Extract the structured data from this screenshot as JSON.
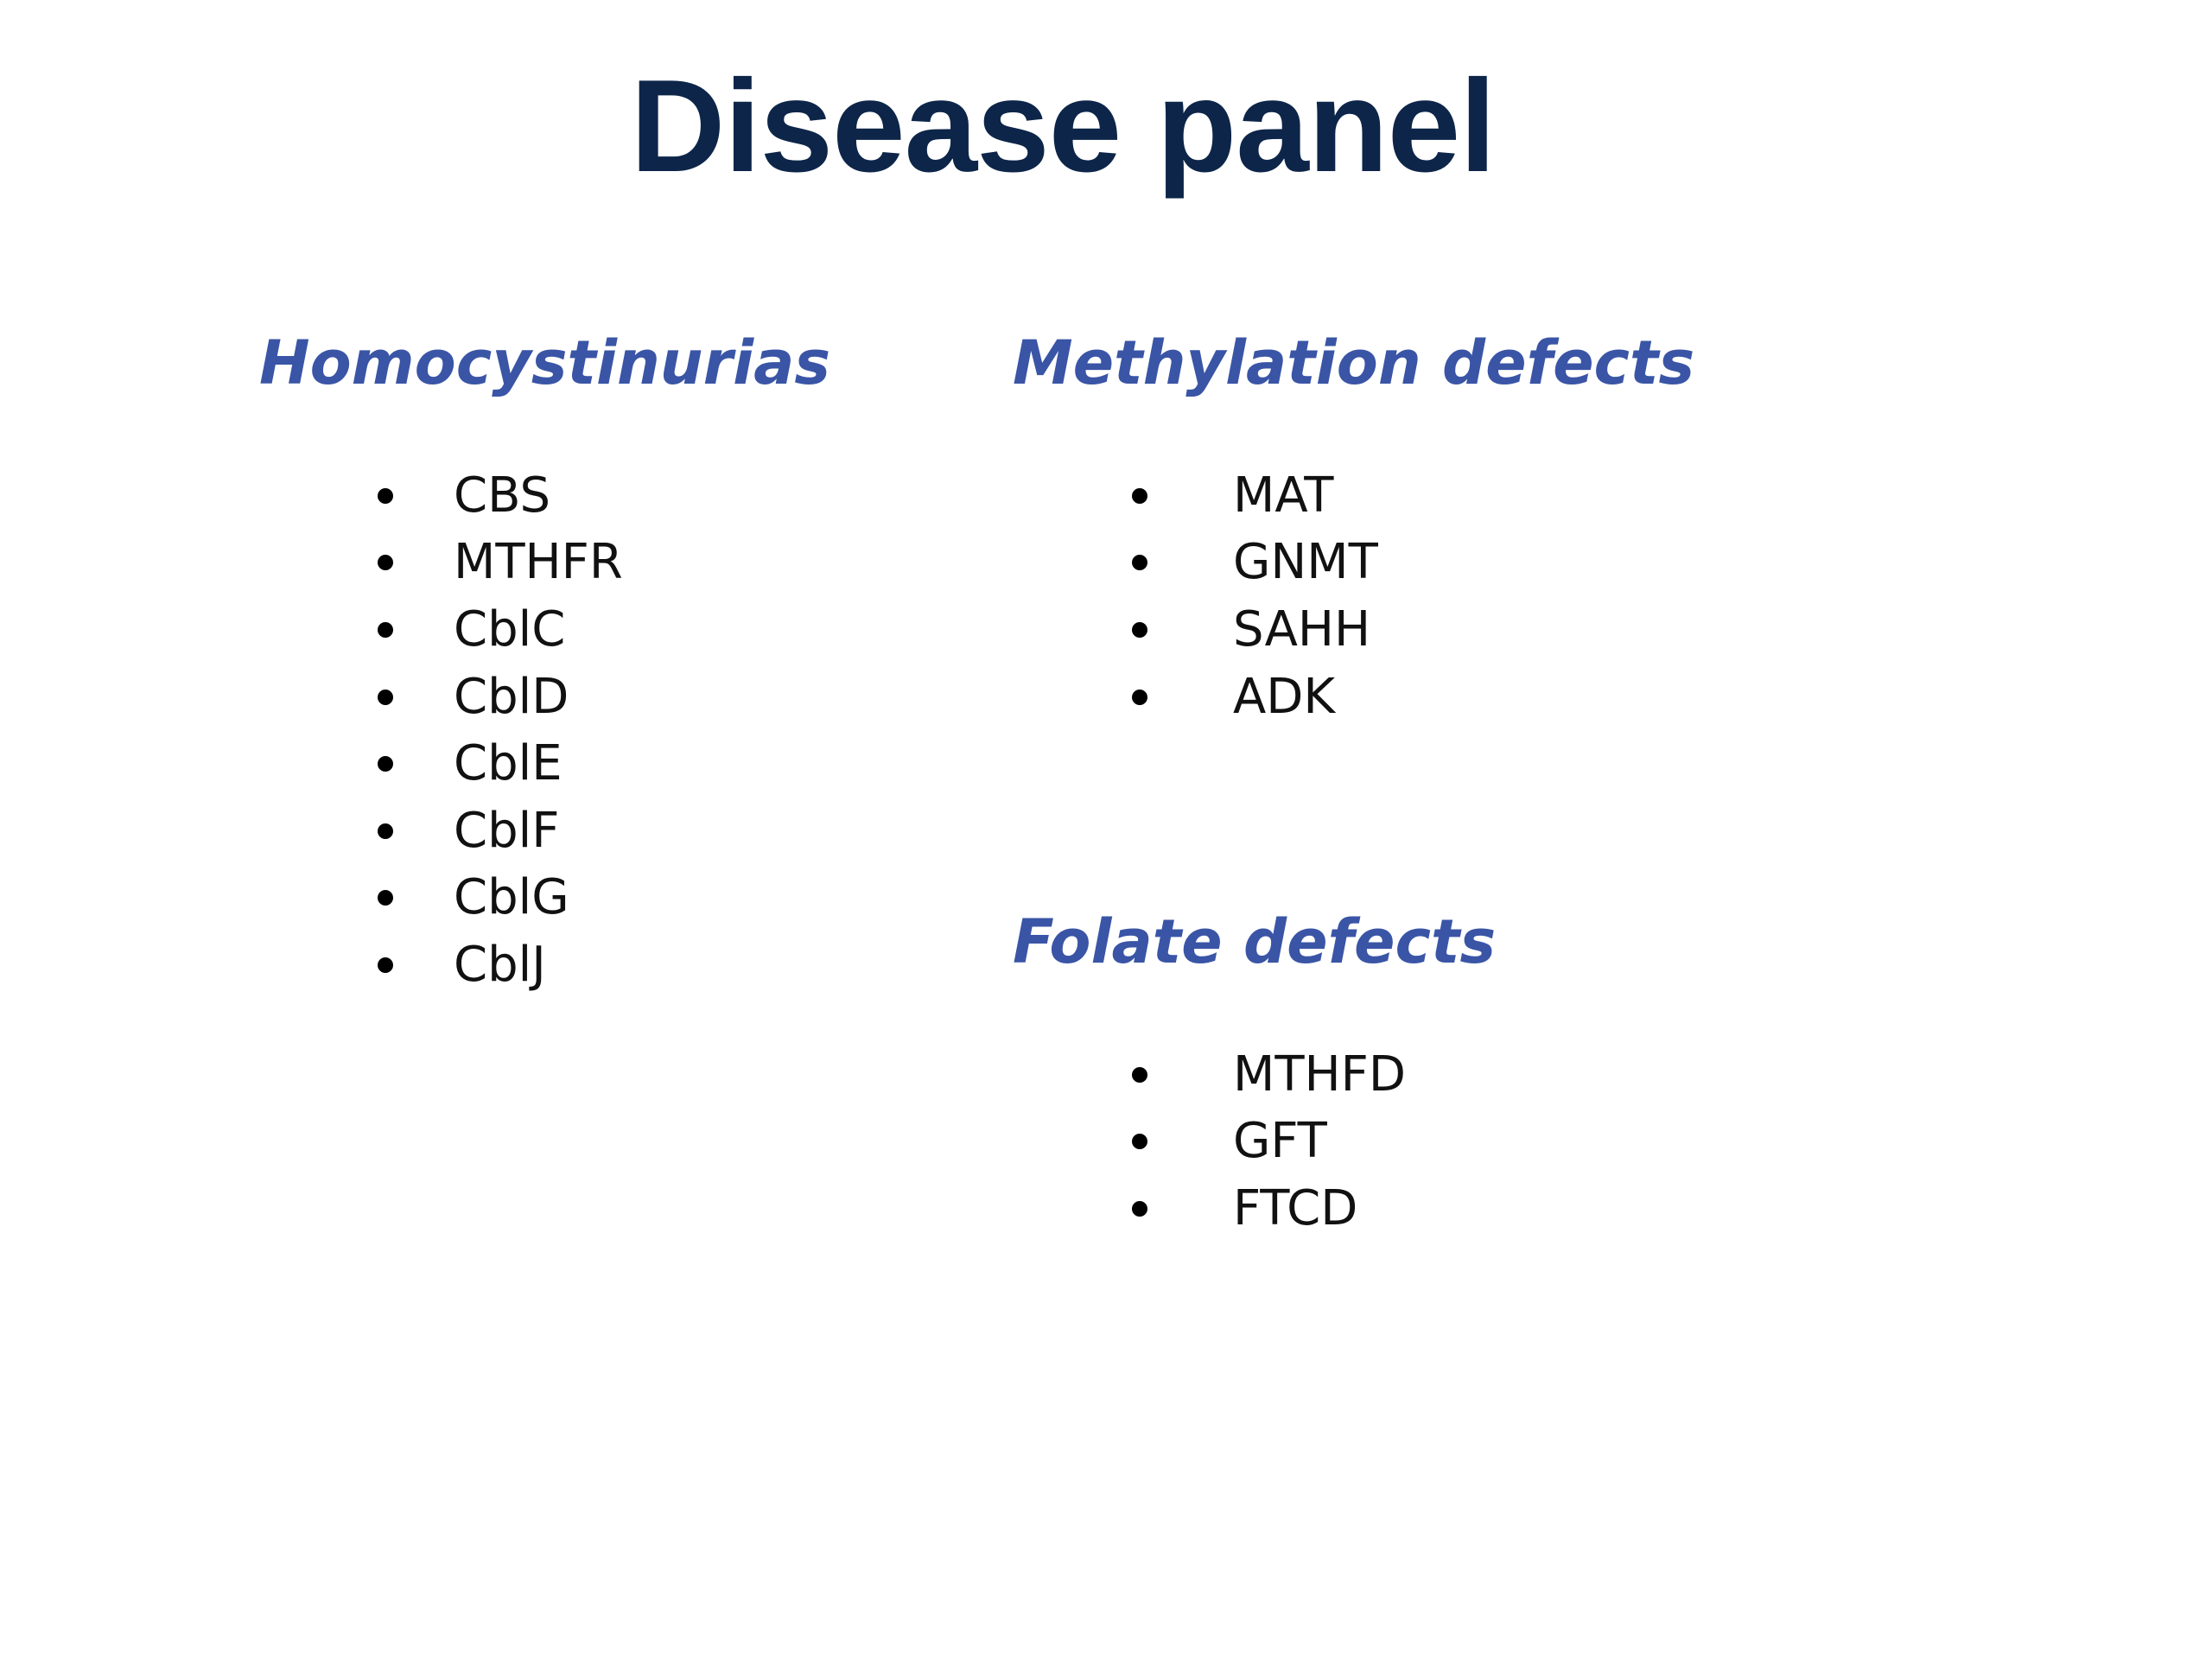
{
  "slide": {
    "title": "Disease panel",
    "sections": [
      {
        "heading": "Homocystinurias",
        "items": [
          "CBS",
          "MTHFR",
          "CblC",
          "CblD",
          "CblE",
          "CblF",
          "CblG",
          "CblJ"
        ]
      },
      {
        "heading": "Methylation defects",
        "items": [
          "MAT",
          "GNMT",
          "SAHH",
          "ADK"
        ]
      },
      {
        "heading": "Folate defects",
        "items": [
          "MTHFD",
          "GFT",
          "FTCD"
        ]
      }
    ]
  },
  "colors": {
    "title": "#0d2549",
    "heading": "#3a55a6",
    "text": "#111111",
    "background": "#ffffff"
  }
}
